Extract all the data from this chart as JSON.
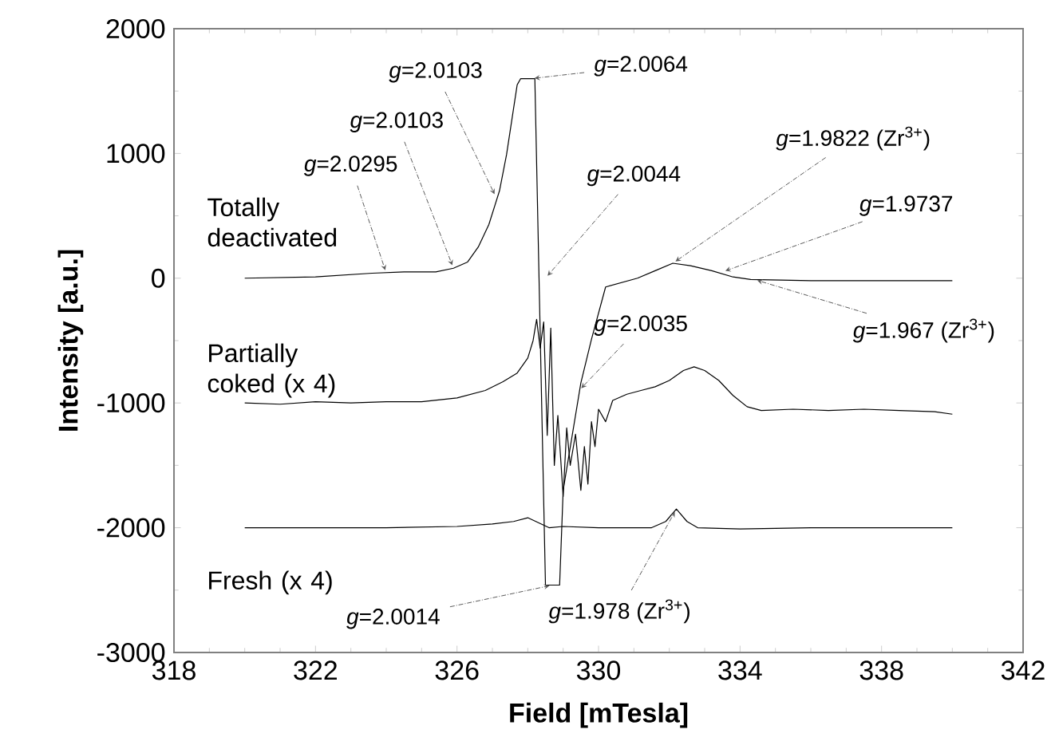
{
  "chart_data": {
    "type": "line",
    "xlabel": "Field [mTesla]",
    "ylabel": "Intensity [a.u.]",
    "xlim": [
      318,
      342
    ],
    "ylim": [
      -3000,
      2000
    ],
    "xticks": [
      318,
      322,
      326,
      330,
      334,
      338,
      342
    ],
    "yticks": [
      -3000,
      -2000,
      -1000,
      0,
      1000,
      2000
    ],
    "series": [
      {
        "name": "Totally deactivated",
        "color": "#000000",
        "x": [
          320,
          322,
          323.6,
          324.5,
          325.4,
          325.9,
          326.3,
          326.6,
          326.9,
          327.2,
          327.4,
          327.7,
          327.8,
          328.2,
          328.5,
          328.9,
          329.0,
          329.5,
          329.8,
          330.2,
          331.1,
          331.6,
          332.1,
          332.6,
          333.2,
          333.8,
          334.3,
          336,
          338,
          340
        ],
        "values": [
          0,
          10,
          40,
          50,
          50,
          80,
          130,
          250,
          430,
          700,
          990,
          1550,
          1600,
          1600,
          -2460,
          -2460,
          -1700,
          -840,
          -490,
          -70,
          0,
          60,
          120,
          100,
          60,
          10,
          -10,
          -20,
          -20,
          -20
        ]
      },
      {
        "name": "Partially coked (x 4)",
        "color": "#000000",
        "x": [
          320,
          321,
          322,
          323,
          324,
          325,
          326,
          326.8,
          327.3,
          327.7,
          328.0,
          328.15,
          328.25,
          328.35,
          328.45,
          328.55,
          328.65,
          328.75,
          328.85,
          329.0,
          329.1,
          329.2,
          329.35,
          329.5,
          329.6,
          329.7,
          329.8,
          329.9,
          330.0,
          330.2,
          330.4,
          330.8,
          331.2,
          331.6,
          332.0,
          332.4,
          332.7,
          333.0,
          333.4,
          333.8,
          334.2,
          334.6,
          335.5,
          336.5,
          337.5,
          338.5,
          339.5,
          340.0
        ],
        "values": [
          -1000,
          -1010,
          -990,
          -1000,
          -990,
          -990,
          -960,
          -900,
          -830,
          -760,
          -640,
          -500,
          -330,
          -560,
          -350,
          -1260,
          -400,
          -1500,
          -1100,
          -1750,
          -1200,
          -1500,
          -1250,
          -1700,
          -1350,
          -1650,
          -1150,
          -1350,
          -1050,
          -1150,
          -980,
          -930,
          -900,
          -870,
          -820,
          -740,
          -710,
          -740,
          -820,
          -940,
          -1030,
          -1060,
          -1050,
          -1060,
          -1050,
          -1060,
          -1070,
          -1090
        ]
      },
      {
        "name": "Fresh (x 4)",
        "color": "#000000",
        "x": [
          320,
          322,
          324,
          326,
          327,
          327.6,
          328.0,
          328.3,
          328.6,
          329.0,
          330,
          331.5,
          331.9,
          332.2,
          332.5,
          332.8,
          334,
          336,
          338,
          340
        ],
        "values": [
          -2000,
          -2000,
          -2000,
          -1990,
          -1970,
          -1950,
          -1920,
          -1960,
          -2000,
          -1990,
          -2000,
          -2000,
          -1950,
          -1850,
          -1950,
          -2000,
          -2010,
          -2000,
          -2000,
          -2000
        ]
      }
    ],
    "annotations": [
      {
        "text": "*g*=2.0295",
        "x": 324.0,
        "y": 40
      },
      {
        "text": "*g*=2.0103",
        "x": 325.9,
        "y": 80
      },
      {
        "text": "*g*=2.0103",
        "x": 327.1,
        "y": 650
      },
      {
        "text": "*g*=2.0064",
        "x": 328.1,
        "y": 1600
      },
      {
        "text": "*g*=2.0044",
        "x": 328.5,
        "y": 0
      },
      {
        "text": "*g*=1.9822 (Zr$^{3+}$)",
        "x": 332.1,
        "y": 120
      },
      {
        "text": "*g*=1.9737",
        "x": 333.5,
        "y": 50
      },
      {
        "text": "*g*=1.967 (Zr$^{3+}$)",
        "x": 334.4,
        "y": -10
      },
      {
        "text": "*g*=2.0035",
        "x": 329.45,
        "y": -900
      },
      {
        "text": "*g*=2.0014",
        "x": 328.7,
        "y": -2460
      },
      {
        "text": "*g*=1.978 (Zr$^{3+}$)",
        "x": 332.2,
        "y": -1850
      }
    ]
  }
}
